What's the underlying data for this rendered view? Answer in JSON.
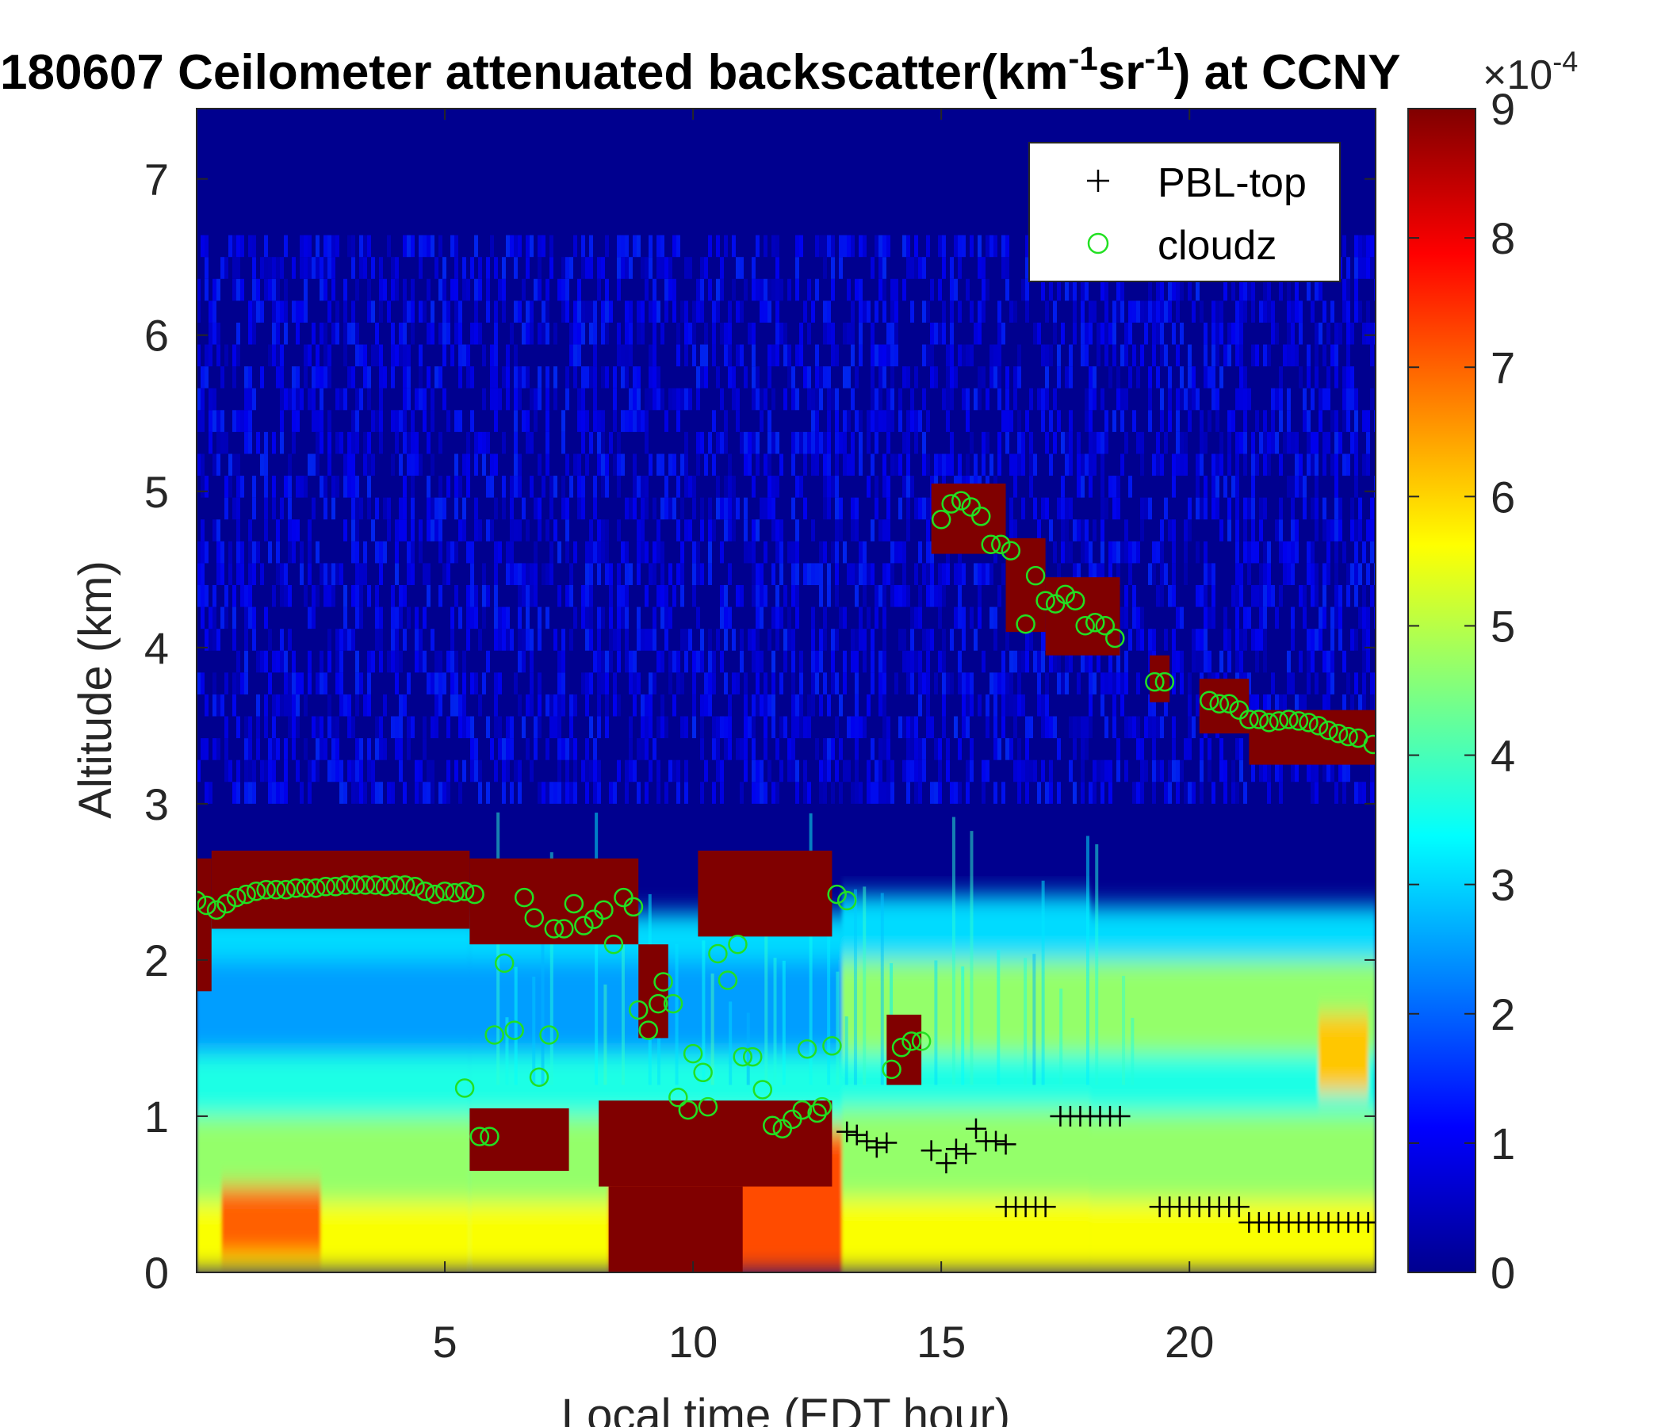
{
  "chart_data": {
    "type": "heatmap",
    "title_main": "180607 Ceilometer attenuated backscatter(km",
    "title_sup1": "-1",
    "title_mid": "sr",
    "title_sup2": "-1",
    "title_end": ") at CCNY",
    "xlabel": "Local time (EDT hour)",
    "ylabel": "Altitude (km)",
    "xlim": [
      0,
      23.75
    ],
    "ylim": [
      0,
      7.45
    ],
    "xticks": [
      5,
      10,
      15,
      20
    ],
    "yticks": [
      0,
      1,
      2,
      3,
      4,
      5,
      6,
      7
    ],
    "colorbar": {
      "colormap": "jet",
      "range": [
        0,
        9
      ],
      "ticks": [
        0,
        1,
        2,
        3,
        4,
        5,
        6,
        7,
        8,
        9
      ],
      "exponent_base": "×10",
      "exponent": "-4"
    },
    "legend": {
      "position": "top-right",
      "entries": [
        {
          "label": "PBL-top",
          "marker": "+",
          "color": "#000000"
        },
        {
          "label": "cloudz",
          "marker": "o",
          "color": "#22e022"
        }
      ]
    },
    "series": [
      {
        "name": "PBL-top",
        "marker": "+",
        "points": [
          [
            13.1,
            0.9
          ],
          [
            13.3,
            0.88
          ],
          [
            13.5,
            0.84
          ],
          [
            13.7,
            0.8
          ],
          [
            13.9,
            0.83
          ],
          [
            14.8,
            0.78
          ],
          [
            15.1,
            0.7
          ],
          [
            15.3,
            0.79
          ],
          [
            15.5,
            0.76
          ],
          [
            15.7,
            0.92
          ],
          [
            15.9,
            0.84
          ],
          [
            16.1,
            0.84
          ],
          [
            16.3,
            0.82
          ],
          [
            16.3,
            0.42
          ],
          [
            16.5,
            0.42
          ],
          [
            16.7,
            0.42
          ],
          [
            16.9,
            0.42
          ],
          [
            17.1,
            0.42
          ],
          [
            17.4,
            1.0
          ],
          [
            17.6,
            1.0
          ],
          [
            17.8,
            1.0
          ],
          [
            18.0,
            1.0
          ],
          [
            18.2,
            1.0
          ],
          [
            18.4,
            1.0
          ],
          [
            18.6,
            1.0
          ],
          [
            19.4,
            0.42
          ],
          [
            19.6,
            0.42
          ],
          [
            19.8,
            0.42
          ],
          [
            20.0,
            0.42
          ],
          [
            20.2,
            0.42
          ],
          [
            20.4,
            0.42
          ],
          [
            20.6,
            0.42
          ],
          [
            20.8,
            0.42
          ],
          [
            21.0,
            0.42
          ],
          [
            21.2,
            0.32
          ],
          [
            21.4,
            0.32
          ],
          [
            21.6,
            0.32
          ],
          [
            21.8,
            0.32
          ],
          [
            22.0,
            0.32
          ],
          [
            22.2,
            0.32
          ],
          [
            22.4,
            0.32
          ],
          [
            22.6,
            0.32
          ],
          [
            22.8,
            0.32
          ],
          [
            23.0,
            0.32
          ],
          [
            23.2,
            0.32
          ],
          [
            23.4,
            0.32
          ],
          [
            23.6,
            0.32
          ],
          [
            23.8,
            0.32
          ]
        ]
      },
      {
        "name": "cloudz",
        "marker": "o",
        "points": [
          [
            0.0,
            2.38
          ],
          [
            0.2,
            2.35
          ],
          [
            0.4,
            2.32
          ],
          [
            0.6,
            2.36
          ],
          [
            0.8,
            2.4
          ],
          [
            1.0,
            2.42
          ],
          [
            1.2,
            2.44
          ],
          [
            1.4,
            2.45
          ],
          [
            1.6,
            2.45
          ],
          [
            1.8,
            2.45
          ],
          [
            2.0,
            2.46
          ],
          [
            2.2,
            2.46
          ],
          [
            2.4,
            2.46
          ],
          [
            2.6,
            2.47
          ],
          [
            2.8,
            2.47
          ],
          [
            3.0,
            2.48
          ],
          [
            3.2,
            2.48
          ],
          [
            3.4,
            2.48
          ],
          [
            3.6,
            2.48
          ],
          [
            3.8,
            2.47
          ],
          [
            4.0,
            2.48
          ],
          [
            4.2,
            2.48
          ],
          [
            4.4,
            2.47
          ],
          [
            4.6,
            2.44
          ],
          [
            4.8,
            2.42
          ],
          [
            5.0,
            2.44
          ],
          [
            5.2,
            2.43
          ],
          [
            5.4,
            2.44
          ],
          [
            5.6,
            2.42
          ],
          [
            5.4,
            1.18
          ],
          [
            5.7,
            0.87
          ],
          [
            5.9,
            0.87
          ],
          [
            6.0,
            1.52
          ],
          [
            6.2,
            1.98
          ],
          [
            6.4,
            1.55
          ],
          [
            6.6,
            2.4
          ],
          [
            6.8,
            2.27
          ],
          [
            6.9,
            1.25
          ],
          [
            7.1,
            1.52
          ],
          [
            7.2,
            2.2
          ],
          [
            7.4,
            2.2
          ],
          [
            7.6,
            2.36
          ],
          [
            7.8,
            2.22
          ],
          [
            8.0,
            2.26
          ],
          [
            8.2,
            2.32
          ],
          [
            8.4,
            2.1
          ],
          [
            8.6,
            2.4
          ],
          [
            8.8,
            2.34
          ],
          [
            8.9,
            1.68
          ],
          [
            9.1,
            1.55
          ],
          [
            9.3,
            1.72
          ],
          [
            9.4,
            1.86
          ],
          [
            9.6,
            1.72
          ],
          [
            9.7,
            1.12
          ],
          [
            9.9,
            1.04
          ],
          [
            10.0,
            1.4
          ],
          [
            10.2,
            1.28
          ],
          [
            10.3,
            1.06
          ],
          [
            10.5,
            2.04
          ],
          [
            10.7,
            1.87
          ],
          [
            10.9,
            2.1
          ],
          [
            11.0,
            1.38
          ],
          [
            11.2,
            1.38
          ],
          [
            11.4,
            1.17
          ],
          [
            11.6,
            0.94
          ],
          [
            11.8,
            0.92
          ],
          [
            12.0,
            0.98
          ],
          [
            12.2,
            1.04
          ],
          [
            12.3,
            1.43
          ],
          [
            12.5,
            1.02
          ],
          [
            12.6,
            1.06
          ],
          [
            12.8,
            1.45
          ],
          [
            12.9,
            2.42
          ],
          [
            13.1,
            2.38
          ],
          [
            14.0,
            1.3
          ],
          [
            14.2,
            1.44
          ],
          [
            14.4,
            1.48
          ],
          [
            14.6,
            1.48
          ],
          [
            15.0,
            4.82
          ],
          [
            15.2,
            4.92
          ],
          [
            15.4,
            4.94
          ],
          [
            15.6,
            4.9
          ],
          [
            15.8,
            4.84
          ],
          [
            16.0,
            4.66
          ],
          [
            16.2,
            4.66
          ],
          [
            16.4,
            4.62
          ],
          [
            16.7,
            4.15
          ],
          [
            16.9,
            4.46
          ],
          [
            17.1,
            4.3
          ],
          [
            17.3,
            4.28
          ],
          [
            17.5,
            4.34
          ],
          [
            17.7,
            4.3
          ],
          [
            17.9,
            4.14
          ],
          [
            18.1,
            4.16
          ],
          [
            18.3,
            4.14
          ],
          [
            18.5,
            4.06
          ],
          [
            19.3,
            3.78
          ],
          [
            19.5,
            3.78
          ],
          [
            20.4,
            3.66
          ],
          [
            20.6,
            3.64
          ],
          [
            20.8,
            3.64
          ],
          [
            21.0,
            3.6
          ],
          [
            21.2,
            3.54
          ],
          [
            21.4,
            3.54
          ],
          [
            21.6,
            3.52
          ],
          [
            21.8,
            3.53
          ],
          [
            22.0,
            3.54
          ],
          [
            22.2,
            3.53
          ],
          [
            22.4,
            3.52
          ],
          [
            22.6,
            3.5
          ],
          [
            22.8,
            3.47
          ],
          [
            23.0,
            3.45
          ],
          [
            23.2,
            3.43
          ],
          [
            23.4,
            3.42
          ],
          [
            23.7,
            3.38
          ]
        ]
      }
    ]
  }
}
